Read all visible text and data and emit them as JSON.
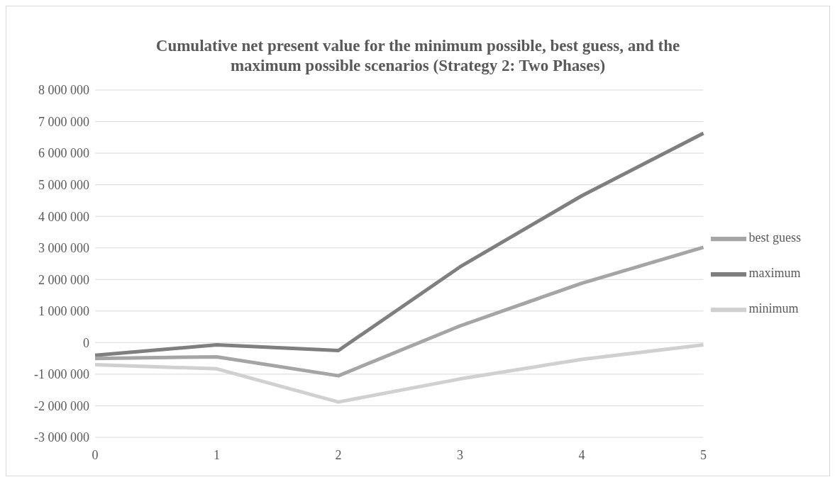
{
  "chart_data": {
    "type": "line",
    "title": "Cumulative net present value for the minimum possible, best guess, and the maximum possible scenarios (Strategy 2: Two Phases)",
    "categories": [
      "0",
      "1",
      "2",
      "3",
      "4",
      "5"
    ],
    "series": [
      {
        "name": "maximum",
        "color": "#7f7f7f",
        "values": [
          -400000,
          -70000,
          -250000,
          2400000,
          4650000,
          6630000
        ]
      },
      {
        "name": "best guess",
        "color": "#a5a5a5",
        "values": [
          -500000,
          -450000,
          -1050000,
          530000,
          1880000,
          3020000
        ]
      },
      {
        "name": "minimum",
        "color": "#d0d0d0",
        "values": [
          -700000,
          -830000,
          -1880000,
          -1150000,
          -530000,
          -70000
        ]
      }
    ],
    "ylim": [
      -3000000,
      8000000
    ],
    "yticks": [
      {
        "value": -3000000,
        "label": "-3 000 000"
      },
      {
        "value": -2000000,
        "label": "-2 000 000"
      },
      {
        "value": -1000000,
        "label": "-1 000 000"
      },
      0,
      {
        "value": 1000000,
        "label": "1 000 000"
      },
      {
        "value": 2000000,
        "label": "2 000 000"
      },
      {
        "value": 3000000,
        "label": "3 000 000"
      },
      {
        "value": 4000000,
        "label": "4 000 000"
      },
      {
        "value": 5000000,
        "label": "5 000 000"
      },
      {
        "value": 6000000,
        "label": "6 000 000"
      },
      {
        "value": 7000000,
        "label": "7 000 000"
      },
      {
        "value": 8000000,
        "label": "8 000 000"
      }
    ],
    "grid": "y",
    "legend": "right",
    "marker": "none",
    "line_style": "solid"
  }
}
